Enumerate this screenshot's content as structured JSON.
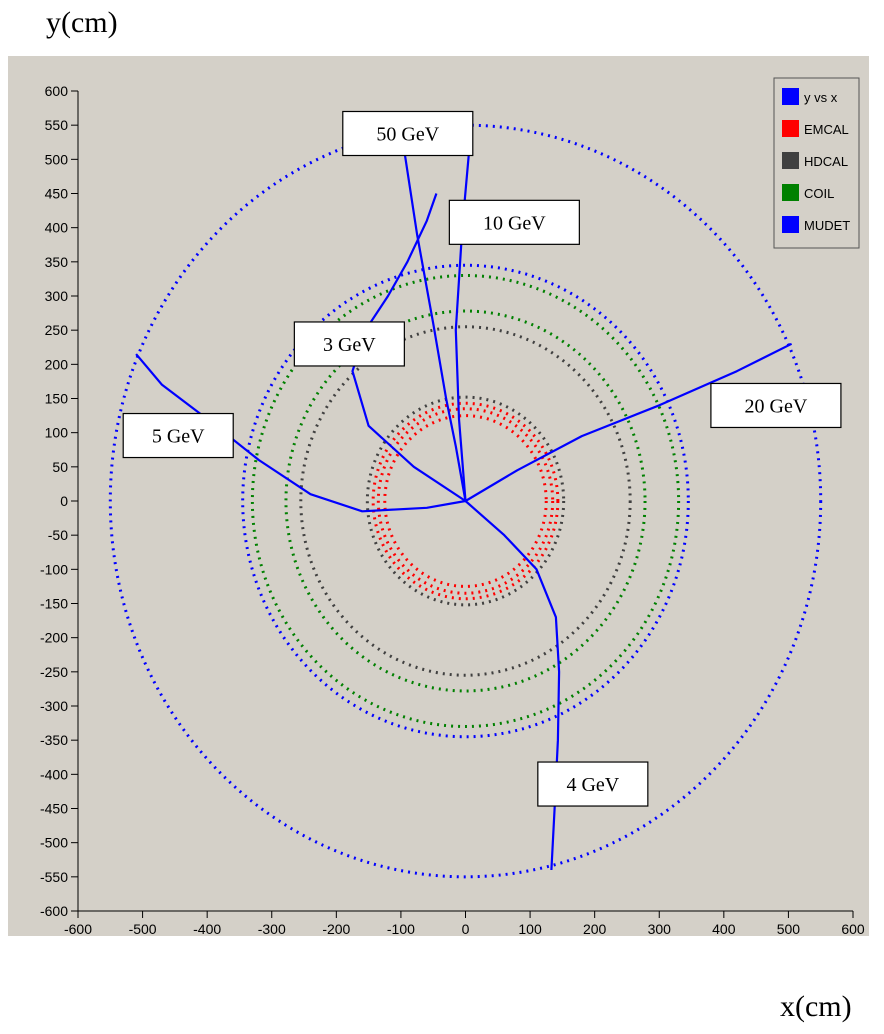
{
  "chart_data": {
    "type": "scatter",
    "title": "",
    "xlabel": "x(cm)",
    "ylabel": "y(cm)",
    "xlim": [
      -600,
      600
    ],
    "ylim": [
      -600,
      600
    ],
    "x_ticks": [
      -600,
      -500,
      -400,
      -300,
      -200,
      -100,
      0,
      100,
      200,
      300,
      400,
      500,
      600
    ],
    "y_ticks": [
      600,
      550,
      500,
      450,
      400,
      350,
      300,
      250,
      200,
      150,
      100,
      50,
      0,
      -50,
      -100,
      -150,
      -200,
      -250,
      -300,
      -350,
      -400,
      -450,
      -500,
      -550,
      -600
    ],
    "grid": false,
    "legend_position": "top-right",
    "legend": [
      {
        "label": "y vs x",
        "color": "#0000ff"
      },
      {
        "label": "EMCAL",
        "color": "#ff0000"
      },
      {
        "label": "HDCAL",
        "color": "#404040"
      },
      {
        "label": "COIL",
        "color": "#008000"
      },
      {
        "label": "MUDET",
        "color": "#0000ff"
      }
    ],
    "rings": [
      {
        "layer": "EMCAL",
        "radius": 125,
        "color": "#ff0000"
      },
      {
        "layer": "EMCAL",
        "radius": 135,
        "color": "#ff0000"
      },
      {
        "layer": "EMCAL",
        "radius": 143,
        "color": "#ff0000"
      },
      {
        "layer": "HDCAL",
        "radius": 152,
        "color": "#404040"
      },
      {
        "layer": "HDCAL",
        "radius": 255,
        "color": "#404040"
      },
      {
        "layer": "COIL",
        "radius": 278,
        "color": "#008000"
      },
      {
        "layer": "COIL",
        "radius": 330,
        "color": "#008000"
      },
      {
        "layer": "MUDET",
        "radius": 345,
        "color": "#0000ff"
      },
      {
        "layer": "MUDET",
        "radius": 550,
        "color": "#0000ff"
      }
    ],
    "tracks": [
      {
        "label": "50 GeV",
        "points": [
          [
            0,
            0
          ],
          [
            -15,
            80
          ],
          [
            -30,
            150
          ],
          [
            -50,
            260
          ],
          [
            -75,
            390
          ],
          [
            -100,
            545
          ]
        ],
        "label_anchor": [
          -190,
          570
        ]
      },
      {
        "label": "10 GeV",
        "points": [
          [
            0,
            0
          ],
          [
            -10,
            120
          ],
          [
            -15,
            250
          ],
          [
            -5,
            400
          ],
          [
            10,
            560
          ]
        ],
        "label_anchor": [
          -25,
          440
        ]
      },
      {
        "label": "3 GeV",
        "points": [
          [
            0,
            0
          ],
          [
            -80,
            50
          ],
          [
            -150,
            110
          ],
          [
            -175,
            190
          ],
          [
            -155,
            250
          ],
          [
            -120,
            300
          ],
          [
            -90,
            350
          ],
          [
            -60,
            410
          ],
          [
            -45,
            450
          ]
        ],
        "label_anchor": [
          -265,
          262
        ]
      },
      {
        "label": "5 GeV",
        "points": [
          [
            0,
            0
          ],
          [
            -60,
            -10
          ],
          [
            -160,
            -15
          ],
          [
            -240,
            10
          ],
          [
            -320,
            60
          ],
          [
            -400,
            120
          ],
          [
            -470,
            170
          ],
          [
            -510,
            215
          ]
        ],
        "label_anchor": [
          -530,
          128
        ]
      },
      {
        "label": "20 GeV",
        "points": [
          [
            0,
            0
          ],
          [
            80,
            45
          ],
          [
            180,
            95
          ],
          [
            300,
            140
          ],
          [
            420,
            190
          ],
          [
            505,
            230
          ]
        ],
        "label_anchor": [
          380,
          172
        ]
      },
      {
        "label": "4 GeV",
        "points": [
          [
            0,
            0
          ],
          [
            60,
            -50
          ],
          [
            110,
            -100
          ],
          [
            140,
            -170
          ],
          [
            145,
            -250
          ],
          [
            143,
            -350
          ],
          [
            138,
            -450
          ],
          [
            133,
            -540
          ]
        ],
        "label_anchor": [
          112,
          -382
        ]
      }
    ]
  }
}
